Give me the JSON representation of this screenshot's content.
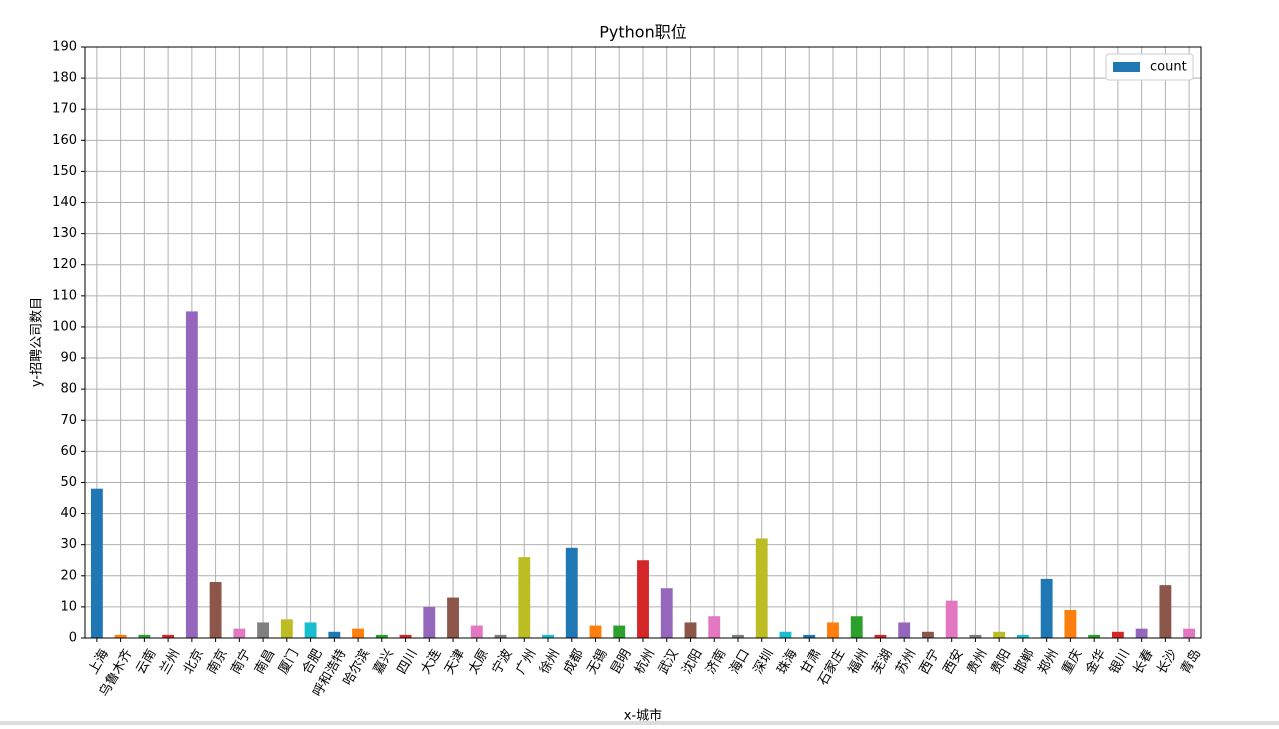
{
  "chart_data": {
    "type": "bar",
    "title": "Python职位",
    "xlabel": "x-城市",
    "ylabel": "y-招聘公司数目",
    "categories": [
      "上海",
      "乌鲁木齐",
      "云南",
      "兰州",
      "北京",
      "南京",
      "南宁",
      "南昌",
      "厦门",
      "合肥",
      "呼和浩特",
      "哈尔滨",
      "嘉兴",
      "四川",
      "大连",
      "天津",
      "太原",
      "宁波",
      "广州",
      "徐州",
      "成都",
      "无锡",
      "昆明",
      "杭州",
      "武汉",
      "沈阳",
      "济南",
      "海口",
      "深圳",
      "珠海",
      "甘肃",
      "石家庄",
      "福州",
      "芜湖",
      "苏州",
      "西宁",
      "西安",
      "贵州",
      "贵阳",
      "邯郸",
      "郑州",
      "重庆",
      "金华",
      "银川",
      "长春",
      "长沙",
      "青岛"
    ],
    "series": [
      {
        "name": "count",
        "color": "#1f77b4",
        "values": [
          48,
          1,
          1,
          1,
          105,
          18,
          3,
          5,
          6,
          5,
          2,
          3,
          1,
          1,
          10,
          13,
          4,
          1,
          26,
          1,
          29,
          4,
          4,
          25,
          16,
          5,
          7,
          1,
          32,
          2,
          1,
          5,
          7,
          1,
          5,
          2,
          12,
          1,
          2,
          1,
          19,
          9,
          1,
          2,
          3,
          17,
          3
        ],
        "colors": [
          "#1f77b4",
          "#ff7f0e",
          "#2ca02c",
          "#d62728",
          "#9467bd",
          "#8c564b",
          "#e377c2",
          "#7f7f7f",
          "#bcbd22",
          "#17becf",
          "#1f77b4",
          "#ff7f0e",
          "#2ca02c",
          "#d62728",
          "#9467bd",
          "#8c564b",
          "#e377c2",
          "#7f7f7f",
          "#bcbd22",
          "#17becf",
          "#1f77b4",
          "#ff7f0e",
          "#2ca02c",
          "#d62728",
          "#9467bd",
          "#8c564b",
          "#e377c2",
          "#7f7f7f",
          "#bcbd22",
          "#17becf",
          "#1f77b4",
          "#ff7f0e",
          "#2ca02c",
          "#d62728",
          "#9467bd",
          "#8c564b",
          "#e377c2",
          "#7f7f7f",
          "#bcbd22",
          "#17becf",
          "#1f77b4",
          "#ff7f0e",
          "#2ca02c",
          "#d62728",
          "#9467bd",
          "#8c564b",
          "#e377c2"
        ]
      }
    ],
    "ylim": [
      0,
      190
    ],
    "yticks": [
      0,
      10,
      20,
      30,
      40,
      50,
      60,
      70,
      80,
      90,
      100,
      110,
      120,
      130,
      140,
      150,
      160,
      170,
      180,
      190
    ],
    "grid": true,
    "legend": "upper right"
  }
}
